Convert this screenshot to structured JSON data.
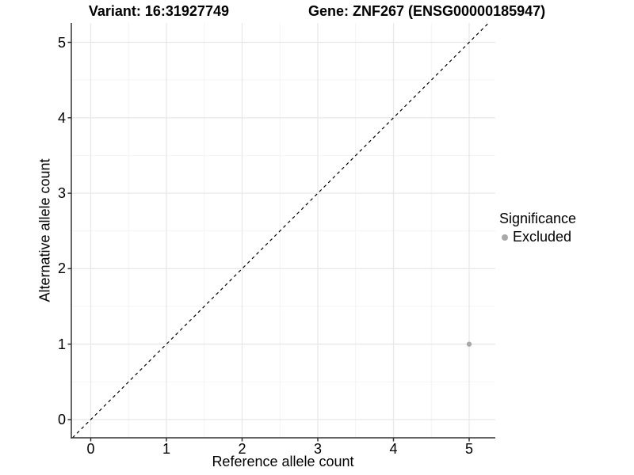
{
  "header": {
    "variant_title": "Variant: 16:31927749",
    "gene_title": "Gene: ZNF267 (ENSG00000185947)"
  },
  "chart_data": {
    "type": "scatter",
    "title": "Variant: 16:31927749    Gene: ZNF267 (ENSG00000185947)",
    "xlabel": "Reference allele count",
    "ylabel": "Alternative allele count",
    "xlim": [
      -0.25,
      5.35
    ],
    "ylim": [
      -0.25,
      5.26
    ],
    "x_ticks": [
      0,
      1,
      2,
      3,
      4,
      5
    ],
    "y_ticks": [
      0,
      1,
      2,
      3,
      4,
      5
    ],
    "minor_grid_step": 0.5,
    "grid": "major+minor on white background",
    "series": [
      {
        "name": "Excluded",
        "color": "#a9a9a9",
        "points": [
          {
            "x": 5,
            "y": 1
          }
        ]
      }
    ],
    "reference_line": {
      "type": "identity y=x",
      "style": "dashed",
      "color": "#000000"
    },
    "legend": {
      "title": "Significance",
      "position": "right",
      "entries": [
        {
          "label": "Excluded",
          "color": "#a9a9a9"
        }
      ]
    }
  },
  "colors": {
    "background": "#ffffff",
    "grid_major": "#e8e8e8",
    "grid_minor": "#f4f4f4",
    "axis_line": "#333333",
    "tick_mark": "#333333",
    "text": "#000000",
    "point": "#a9a9a9"
  }
}
